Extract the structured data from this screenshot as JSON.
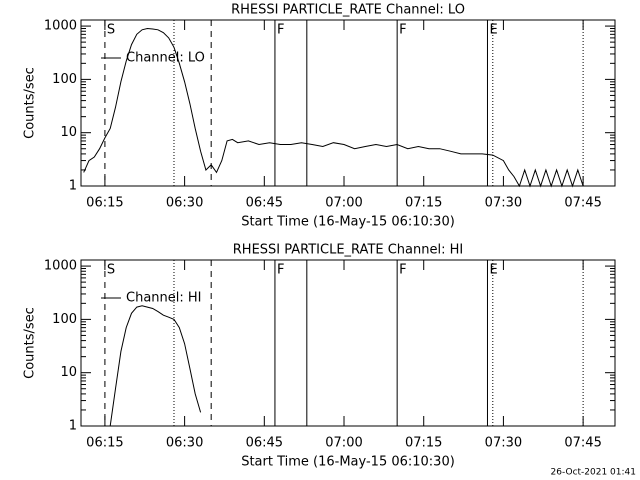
{
  "chart_data": [
    {
      "type": "line",
      "title": "RHESSI PARTICLE_RATE Channel: LO",
      "xlabel": "Start Time (16-May-15 06:10:30)",
      "ylabel": "Counts/sec",
      "x": [
        "06:11",
        "06:12",
        "06:13",
        "06:14",
        "06:15",
        "06:16",
        "06:17",
        "06:18",
        "06:19",
        "06:20",
        "06:21",
        "06:22",
        "06:23",
        "06:24",
        "06:25",
        "06:26",
        "06:27",
        "06:28",
        "06:29",
        "06:30",
        "06:31",
        "06:32",
        "06:33",
        "06:34",
        "06:35",
        "06:36",
        "06:37",
        "06:38",
        "06:39",
        "06:40",
        "06:42",
        "06:44",
        "06:46",
        "06:48",
        "06:50",
        "06:52",
        "06:54",
        "06:56",
        "06:58",
        "07:00",
        "07:02",
        "07:04",
        "07:06",
        "07:08",
        "07:10",
        "07:12",
        "07:14",
        "07:16",
        "07:18",
        "07:20",
        "07:22",
        "07:24",
        "07:26",
        "07:28",
        "07:30",
        "07:31",
        "07:32",
        "07:33",
        "07:34",
        "07:35",
        "07:36",
        "07:37",
        "07:38",
        "07:39",
        "07:40",
        "07:41",
        "07:42",
        "07:43",
        "07:44",
        "07:45"
      ],
      "series": [
        {
          "name": "Channel: LO",
          "color": "#000000",
          "values": [
            1.8,
            3,
            3.5,
            5,
            8,
            12,
            30,
            90,
            220,
            450,
            700,
            850,
            900,
            880,
            850,
            750,
            600,
            400,
            200,
            90,
            35,
            12,
            4.5,
            2,
            2.5,
            1.8,
            3,
            7,
            7.5,
            6.5,
            7,
            6,
            6.5,
            6,
            6,
            6.5,
            6,
            5.5,
            6.5,
            6,
            5,
            5.5,
            6,
            5.5,
            6,
            5,
            5.5,
            5,
            5,
            4.5,
            4,
            4,
            4,
            3.8,
            3,
            2,
            1.5,
            1,
            2,
            1,
            2,
            1,
            2,
            1,
            2,
            1,
            2,
            1,
            2,
            1
          ]
        }
      ],
      "xlim": [
        "06:10:30",
        "07:51"
      ],
      "xticks": [
        "06:15",
        "06:30",
        "06:45",
        "07:00",
        "07:15",
        "07:30",
        "07:45"
      ],
      "ylim": [
        1,
        1300
      ],
      "yticks": [
        1,
        10,
        100,
        1000
      ],
      "log_y": true,
      "markers": [
        {
          "x": "06:15",
          "label": "S",
          "style": "dashed"
        },
        {
          "x": "06:28",
          "style": "dotted"
        },
        {
          "x": "06:35",
          "style": "dashed"
        },
        {
          "x": "06:47",
          "label": "F",
          "style": "solid"
        },
        {
          "x": "06:53",
          "style": "solid"
        },
        {
          "x": "07:10",
          "label": "F",
          "style": "solid"
        },
        {
          "x": "07:27",
          "label": "E",
          "style": "solid"
        },
        {
          "x": "07:28",
          "style": "dotted"
        },
        {
          "x": "07:45",
          "style": "dotted"
        }
      ]
    },
    {
      "type": "line",
      "title": "RHESSI PARTICLE_RATE Channel: HI",
      "xlabel": "Start Time (16-May-15 06:10:30)",
      "ylabel": "Counts/sec",
      "x": [
        "06:16",
        "06:17",
        "06:18",
        "06:19",
        "06:20",
        "06:21",
        "06:22",
        "06:23",
        "06:24",
        "06:25",
        "06:26",
        "06:27",
        "06:28",
        "06:29",
        "06:30",
        "06:31",
        "06:32",
        "06:33"
      ],
      "series": [
        {
          "name": "Channel: HI",
          "color": "#000000",
          "values": [
            1,
            5,
            25,
            70,
            130,
            170,
            180,
            170,
            160,
            140,
            120,
            110,
            100,
            70,
            35,
            12,
            4,
            1.8
          ]
        }
      ],
      "xlim": [
        "06:10:30",
        "07:51"
      ],
      "xticks": [
        "06:15",
        "06:30",
        "06:45",
        "07:00",
        "07:15",
        "07:30",
        "07:45"
      ],
      "ylim": [
        1,
        1300
      ],
      "yticks": [
        1,
        10,
        100,
        1000
      ],
      "log_y": true,
      "markers": [
        {
          "x": "06:15",
          "label": "S",
          "style": "dashed"
        },
        {
          "x": "06:28",
          "style": "dotted"
        },
        {
          "x": "06:35",
          "style": "dashed"
        },
        {
          "x": "06:47",
          "label": "F",
          "style": "solid"
        },
        {
          "x": "06:53",
          "style": "solid"
        },
        {
          "x": "07:10",
          "label": "F",
          "style": "solid"
        },
        {
          "x": "07:27",
          "label": "E",
          "style": "solid"
        },
        {
          "x": "07:28",
          "style": "dotted"
        },
        {
          "x": "07:45",
          "style": "dotted"
        }
      ]
    }
  ],
  "footer": "26-Oct-2021 01:41"
}
